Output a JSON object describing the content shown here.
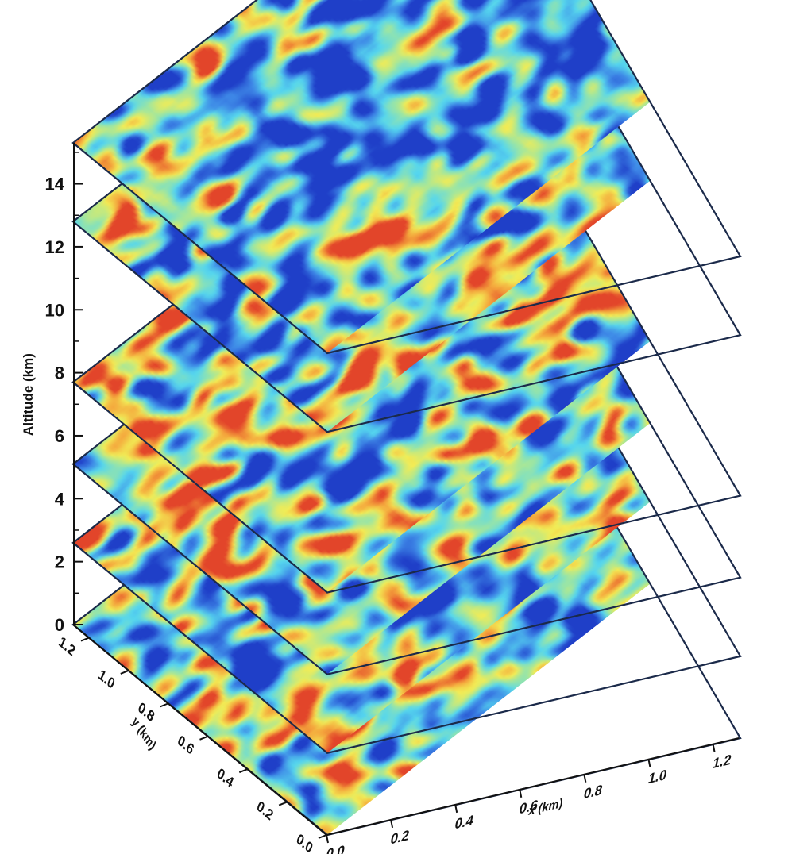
{
  "chart_data": {
    "type": "heatmap",
    "title": "",
    "z_axis": {
      "label": "Altitude (km)",
      "ticks": [
        "0",
        "2",
        "4",
        "6",
        "8",
        "10",
        "12",
        "14"
      ],
      "range": [
        0,
        15.3
      ]
    },
    "x_axis": {
      "label": "x (km)",
      "ticks": [
        "0.0",
        "0.2",
        "0.4",
        "0.6",
        "0.8",
        "1.0",
        "1.2"
      ],
      "range": [
        0,
        1.28
      ]
    },
    "y_axis": {
      "label": "y (km)",
      "ticks": [
        "0.0",
        "0.2",
        "0.4",
        "0.6",
        "0.8",
        "1.0",
        "1.2"
      ],
      "range": [
        0,
        1.28
      ]
    },
    "layers": [
      {
        "altitude": 0.0
      },
      {
        "altitude": 2.6
      },
      {
        "altitude": 5.1
      },
      {
        "altitude": 7.7
      },
      {
        "altitude": 12.8
      },
      {
        "altitude": 15.3
      }
    ],
    "colormap": [
      "#1f3fc8",
      "#3d86e6",
      "#55d6ee",
      "#9fe6a0",
      "#f2ec55",
      "#f4a63c",
      "#e2452a"
    ],
    "grid": false,
    "legend": "none"
  }
}
